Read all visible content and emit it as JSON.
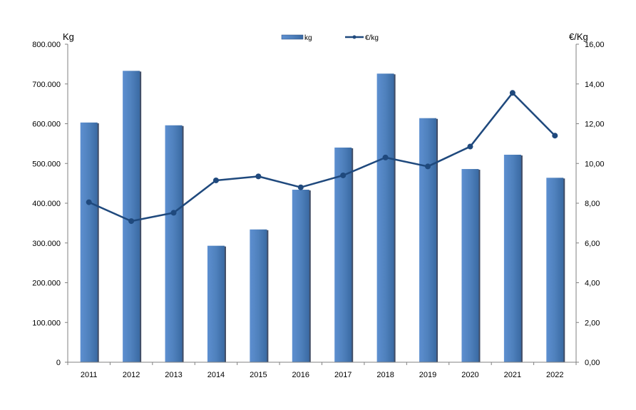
{
  "chart_data": {
    "type": "bar",
    "categories": [
      "2011",
      "2012",
      "2013",
      "2014",
      "2015",
      "2016",
      "2017",
      "2018",
      "2019",
      "2020",
      "2021",
      "2022"
    ],
    "series": [
      {
        "name": "kg",
        "type": "bar",
        "axis": "left",
        "values": [
          603000,
          733000,
          596000,
          293000,
          334000,
          434000,
          540000,
          726000,
          614000,
          486000,
          522000,
          464000
        ]
      },
      {
        "name": "€/kg",
        "type": "line",
        "axis": "right",
        "values": [
          8.05,
          7.1,
          7.52,
          9.15,
          9.35,
          8.8,
          9.4,
          10.3,
          9.85,
          10.85,
          13.55,
          11.4
        ]
      }
    ],
    "ylabel_left": "Kg",
    "ylabel_right": "€/Kg",
    "ylim_left": [
      0,
      800000
    ],
    "ylim_right": [
      0,
      16
    ],
    "yticks_left": [
      "0",
      "100.000",
      "200.000",
      "300.000",
      "400.000",
      "500.000",
      "600.000",
      "700.000",
      "800.000"
    ],
    "yticks_right": [
      "0,00",
      "2,00",
      "4,00",
      "6,00",
      "8,00",
      "10,00",
      "12,00",
      "14,00",
      "16,00"
    ],
    "legend_position": "top-center",
    "grid": false,
    "colors": {
      "bar": "#4f81bd",
      "bar_shadow": "#1f2d4a",
      "line": "#1f497d",
      "axis": "#808080"
    }
  }
}
